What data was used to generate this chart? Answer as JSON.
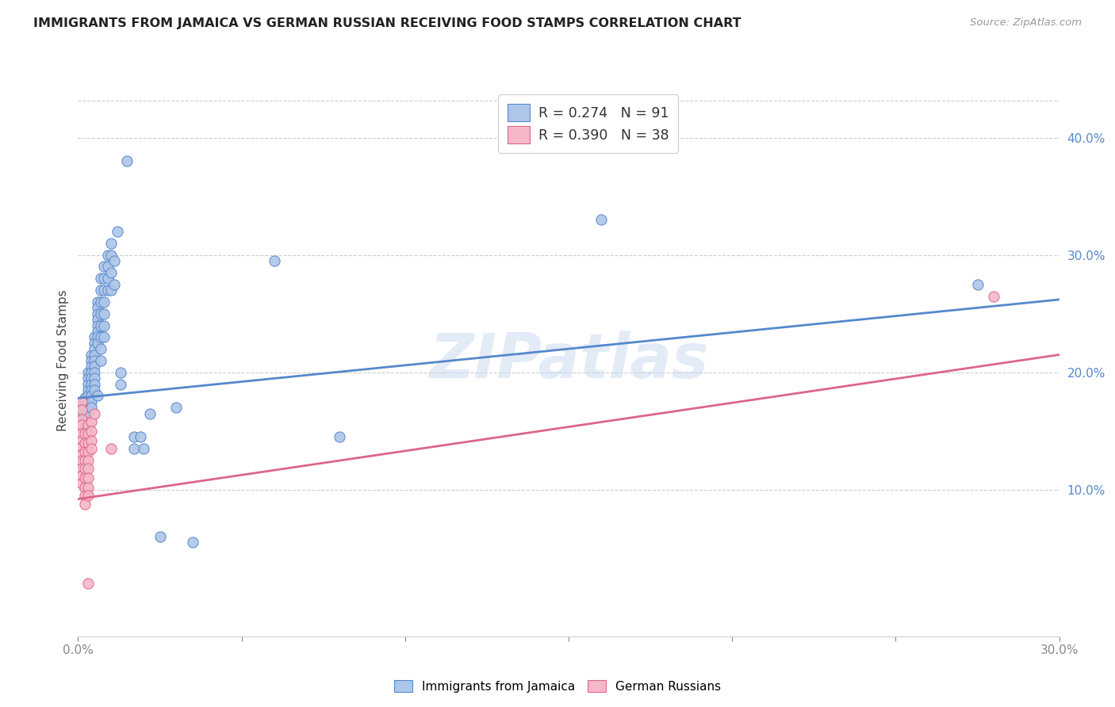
{
  "title": "IMMIGRANTS FROM JAMAICA VS GERMAN RUSSIAN RECEIVING FOOD STAMPS CORRELATION CHART",
  "source": "Source: ZipAtlas.com",
  "ylabel": "Receiving Food Stamps",
  "right_yticks": [
    "10.0%",
    "20.0%",
    "30.0%",
    "40.0%"
  ],
  "right_ytick_vals": [
    0.1,
    0.2,
    0.3,
    0.4
  ],
  "xlim": [
    0.0,
    0.3
  ],
  "ylim": [
    -0.025,
    0.445
  ],
  "legend1_R": "0.274",
  "legend1_N": "91",
  "legend2_R": "0.390",
  "legend2_N": "38",
  "watermark": "ZIPatlas",
  "blue_color": "#aec6e8",
  "pink_color": "#f5b8c8",
  "blue_line_color": "#5588cc",
  "pink_line_color": "#dd6688",
  "blue_scatter": [
    [
      0.001,
      0.175
    ],
    [
      0.001,
      0.172
    ],
    [
      0.001,
      0.168
    ],
    [
      0.001,
      0.165
    ],
    [
      0.002,
      0.178
    ],
    [
      0.002,
      0.175
    ],
    [
      0.002,
      0.17
    ],
    [
      0.002,
      0.168
    ],
    [
      0.002,
      0.165
    ],
    [
      0.002,
      0.162
    ],
    [
      0.002,
      0.158
    ],
    [
      0.002,
      0.155
    ],
    [
      0.003,
      0.2
    ],
    [
      0.003,
      0.195
    ],
    [
      0.003,
      0.19
    ],
    [
      0.003,
      0.185
    ],
    [
      0.003,
      0.18
    ],
    [
      0.003,
      0.175
    ],
    [
      0.003,
      0.17
    ],
    [
      0.003,
      0.168
    ],
    [
      0.003,
      0.165
    ],
    [
      0.004,
      0.215
    ],
    [
      0.004,
      0.21
    ],
    [
      0.004,
      0.205
    ],
    [
      0.004,
      0.2
    ],
    [
      0.004,
      0.195
    ],
    [
      0.004,
      0.19
    ],
    [
      0.004,
      0.185
    ],
    [
      0.004,
      0.18
    ],
    [
      0.004,
      0.175
    ],
    [
      0.004,
      0.17
    ],
    [
      0.005,
      0.23
    ],
    [
      0.005,
      0.225
    ],
    [
      0.005,
      0.22
    ],
    [
      0.005,
      0.215
    ],
    [
      0.005,
      0.21
    ],
    [
      0.005,
      0.205
    ],
    [
      0.005,
      0.2
    ],
    [
      0.005,
      0.195
    ],
    [
      0.005,
      0.19
    ],
    [
      0.005,
      0.185
    ],
    [
      0.006,
      0.26
    ],
    [
      0.006,
      0.255
    ],
    [
      0.006,
      0.25
    ],
    [
      0.006,
      0.245
    ],
    [
      0.006,
      0.24
    ],
    [
      0.006,
      0.235
    ],
    [
      0.006,
      0.23
    ],
    [
      0.006,
      0.225
    ],
    [
      0.006,
      0.18
    ],
    [
      0.007,
      0.28
    ],
    [
      0.007,
      0.27
    ],
    [
      0.007,
      0.26
    ],
    [
      0.007,
      0.25
    ],
    [
      0.007,
      0.24
    ],
    [
      0.007,
      0.23
    ],
    [
      0.007,
      0.22
    ],
    [
      0.007,
      0.21
    ],
    [
      0.008,
      0.29
    ],
    [
      0.008,
      0.28
    ],
    [
      0.008,
      0.27
    ],
    [
      0.008,
      0.26
    ],
    [
      0.008,
      0.25
    ],
    [
      0.008,
      0.24
    ],
    [
      0.008,
      0.23
    ],
    [
      0.009,
      0.3
    ],
    [
      0.009,
      0.29
    ],
    [
      0.009,
      0.28
    ],
    [
      0.009,
      0.27
    ],
    [
      0.01,
      0.31
    ],
    [
      0.01,
      0.3
    ],
    [
      0.01,
      0.285
    ],
    [
      0.01,
      0.27
    ],
    [
      0.011,
      0.295
    ],
    [
      0.011,
      0.275
    ],
    [
      0.012,
      0.32
    ],
    [
      0.013,
      0.2
    ],
    [
      0.013,
      0.19
    ],
    [
      0.015,
      0.38
    ],
    [
      0.017,
      0.145
    ],
    [
      0.017,
      0.135
    ],
    [
      0.019,
      0.145
    ],
    [
      0.02,
      0.135
    ],
    [
      0.022,
      0.165
    ],
    [
      0.025,
      0.06
    ],
    [
      0.03,
      0.17
    ],
    [
      0.035,
      0.055
    ],
    [
      0.06,
      0.295
    ],
    [
      0.08,
      0.145
    ],
    [
      0.16,
      0.33
    ],
    [
      0.275,
      0.275
    ]
  ],
  "pink_scatter": [
    [
      0.001,
      0.175
    ],
    [
      0.001,
      0.168
    ],
    [
      0.001,
      0.16
    ],
    [
      0.001,
      0.155
    ],
    [
      0.001,
      0.148
    ],
    [
      0.001,
      0.142
    ],
    [
      0.001,
      0.136
    ],
    [
      0.001,
      0.13
    ],
    [
      0.001,
      0.125
    ],
    [
      0.001,
      0.118
    ],
    [
      0.001,
      0.112
    ],
    [
      0.001,
      0.105
    ],
    [
      0.002,
      0.148
    ],
    [
      0.002,
      0.14
    ],
    [
      0.002,
      0.132
    ],
    [
      0.002,
      0.125
    ],
    [
      0.002,
      0.118
    ],
    [
      0.002,
      0.11
    ],
    [
      0.002,
      0.102
    ],
    [
      0.002,
      0.095
    ],
    [
      0.002,
      0.088
    ],
    [
      0.003,
      0.155
    ],
    [
      0.003,
      0.148
    ],
    [
      0.003,
      0.14
    ],
    [
      0.003,
      0.132
    ],
    [
      0.003,
      0.125
    ],
    [
      0.003,
      0.118
    ],
    [
      0.003,
      0.11
    ],
    [
      0.003,
      0.102
    ],
    [
      0.003,
      0.095
    ],
    [
      0.003,
      0.02
    ],
    [
      0.004,
      0.158
    ],
    [
      0.004,
      0.15
    ],
    [
      0.004,
      0.142
    ],
    [
      0.004,
      0.135
    ],
    [
      0.005,
      0.165
    ],
    [
      0.01,
      0.135
    ],
    [
      0.28,
      0.265
    ]
  ],
  "blue_trend_x": [
    0.0,
    0.3
  ],
  "blue_trend_y": [
    0.178,
    0.262
  ],
  "pink_trend_x": [
    0.0,
    0.3
  ],
  "pink_trend_y": [
    0.092,
    0.215
  ]
}
